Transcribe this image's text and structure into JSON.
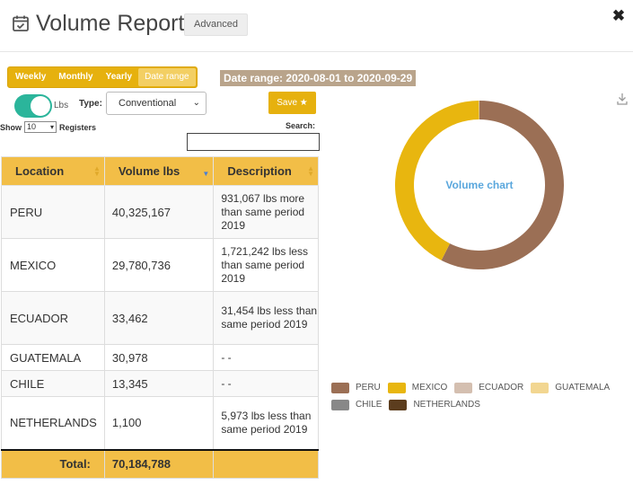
{
  "header": {
    "title": "Volume Report",
    "advanced_label": "Advanced",
    "close_icon": "close-icon"
  },
  "filters": {
    "periods": [
      "Weekly",
      "Monthly",
      "Yearly",
      "Date range"
    ],
    "active_period": "Date range",
    "date_range_text": "Date range: 2020-08-01 to 2020-09-29",
    "unit_toggle_label": "Lbs",
    "unit_toggle_on": true,
    "type_label": "Type:",
    "type_value": "Conventional",
    "save_label": "Save ★"
  },
  "table_controls": {
    "show_label": "Show",
    "show_value": "10",
    "registers_label": "Registers",
    "search_label": "Search:",
    "search_value": ""
  },
  "table": {
    "columns": [
      "Location",
      "Volume lbs",
      "Description"
    ],
    "rows": [
      {
        "location": "PERU",
        "volume": "40,325,167",
        "description": "931,067 lbs more than same period 2019"
      },
      {
        "location": "MEXICO",
        "volume": "29,780,736",
        "description": "1,721,242 lbs less than same period 2019"
      },
      {
        "location": "ECUADOR",
        "volume": "33,462",
        "description": "31,454 lbs less than same period 2019"
      },
      {
        "location": "GUATEMALA",
        "volume": "30,978",
        "description": "- -"
      },
      {
        "location": "CHILE",
        "volume": "13,345",
        "description": "- -"
      },
      {
        "location": "NETHERLANDS",
        "volume": "1,100",
        "description": "5,973 lbs less than same period 2019"
      }
    ],
    "total_label": "Total:",
    "total_value": "70,184,788"
  },
  "chart": {
    "center_label": "Volume chart",
    "download_icon": "download-icon",
    "legend": [
      {
        "name": "PERU",
        "color": "#9b6f55"
      },
      {
        "name": "MEXICO",
        "color": "#e8b60f"
      },
      {
        "name": "ECUADOR",
        "color": "#d4bfb0"
      },
      {
        "name": "GUATEMALA",
        "color": "#f2d691"
      },
      {
        "name": "CHILE",
        "color": "#888888"
      },
      {
        "name": "NETHERLANDS",
        "color": "#5c3d1e"
      }
    ],
    "values": [
      40325167,
      29780736,
      33462,
      30978,
      13345,
      1100
    ]
  }
}
